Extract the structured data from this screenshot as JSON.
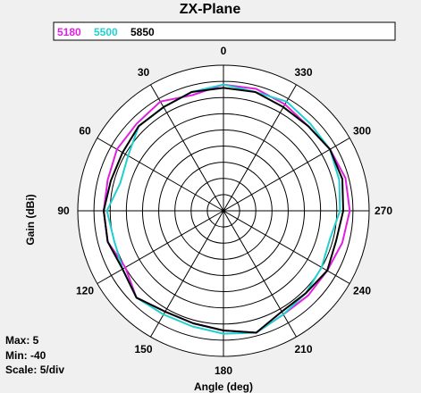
{
  "chart_data": {
    "type": "polar-line",
    "title": "ZX-Plane",
    "xlabel": "Angle  (deg)",
    "ylabel": "Gain  (dBi)",
    "angle_ticks": [
      0,
      30,
      60,
      90,
      120,
      150,
      180,
      210,
      240,
      270,
      300,
      330
    ],
    "angle_direction": "counterclockwise",
    "r_range": [
      -40,
      5
    ],
    "r_step": 5,
    "grid": true,
    "legend_position": "top",
    "series": [
      {
        "name": "5180",
        "color": "#e020e0",
        "angles": [
          0,
          15,
          30,
          45,
          60,
          75,
          90,
          105,
          120,
          135,
          150,
          165,
          180,
          195,
          210,
          225,
          240,
          255,
          270,
          285,
          300,
          315,
          330,
          345
        ],
        "values": [
          -1,
          -3,
          -1,
          -2,
          -2,
          -3,
          -3,
          -3,
          -5,
          -2,
          -4,
          -4,
          -3,
          -1,
          -3,
          -3,
          -3,
          -2,
          -1,
          -1,
          -2,
          -3,
          -2,
          -1
        ]
      },
      {
        "name": "5500",
        "color": "#20d0d0",
        "angles": [
          0,
          15,
          30,
          45,
          60,
          75,
          90,
          105,
          120,
          135,
          150,
          165,
          180,
          195,
          210,
          225,
          240,
          255,
          270,
          285,
          300,
          315,
          330,
          345
        ],
        "values": [
          -1,
          -2,
          -3,
          -3,
          -6,
          -7,
          -4,
          -5,
          -4,
          -2,
          -3,
          -3,
          -2,
          -1,
          -3,
          -4,
          -5,
          -6,
          -4,
          -3,
          -2,
          -2,
          -1,
          -2
        ]
      },
      {
        "name": "5850",
        "color": "#000000",
        "angles": [
          0,
          15,
          30,
          45,
          60,
          75,
          90,
          105,
          120,
          135,
          150,
          165,
          180,
          195,
          210,
          225,
          240,
          255,
          270,
          285,
          300,
          315,
          330,
          345
        ],
        "values": [
          -2,
          -2,
          -3,
          -3,
          -4,
          -4,
          -3,
          -3,
          -4,
          -2,
          -4,
          -4,
          -3,
          -1,
          -4,
          -4,
          -3,
          -4,
          -3,
          -2,
          -2,
          -3,
          -3,
          -2
        ]
      }
    ]
  },
  "info": {
    "max": "Max: 5",
    "min": "Min: -40",
    "scale": "Scale: 5/div"
  }
}
